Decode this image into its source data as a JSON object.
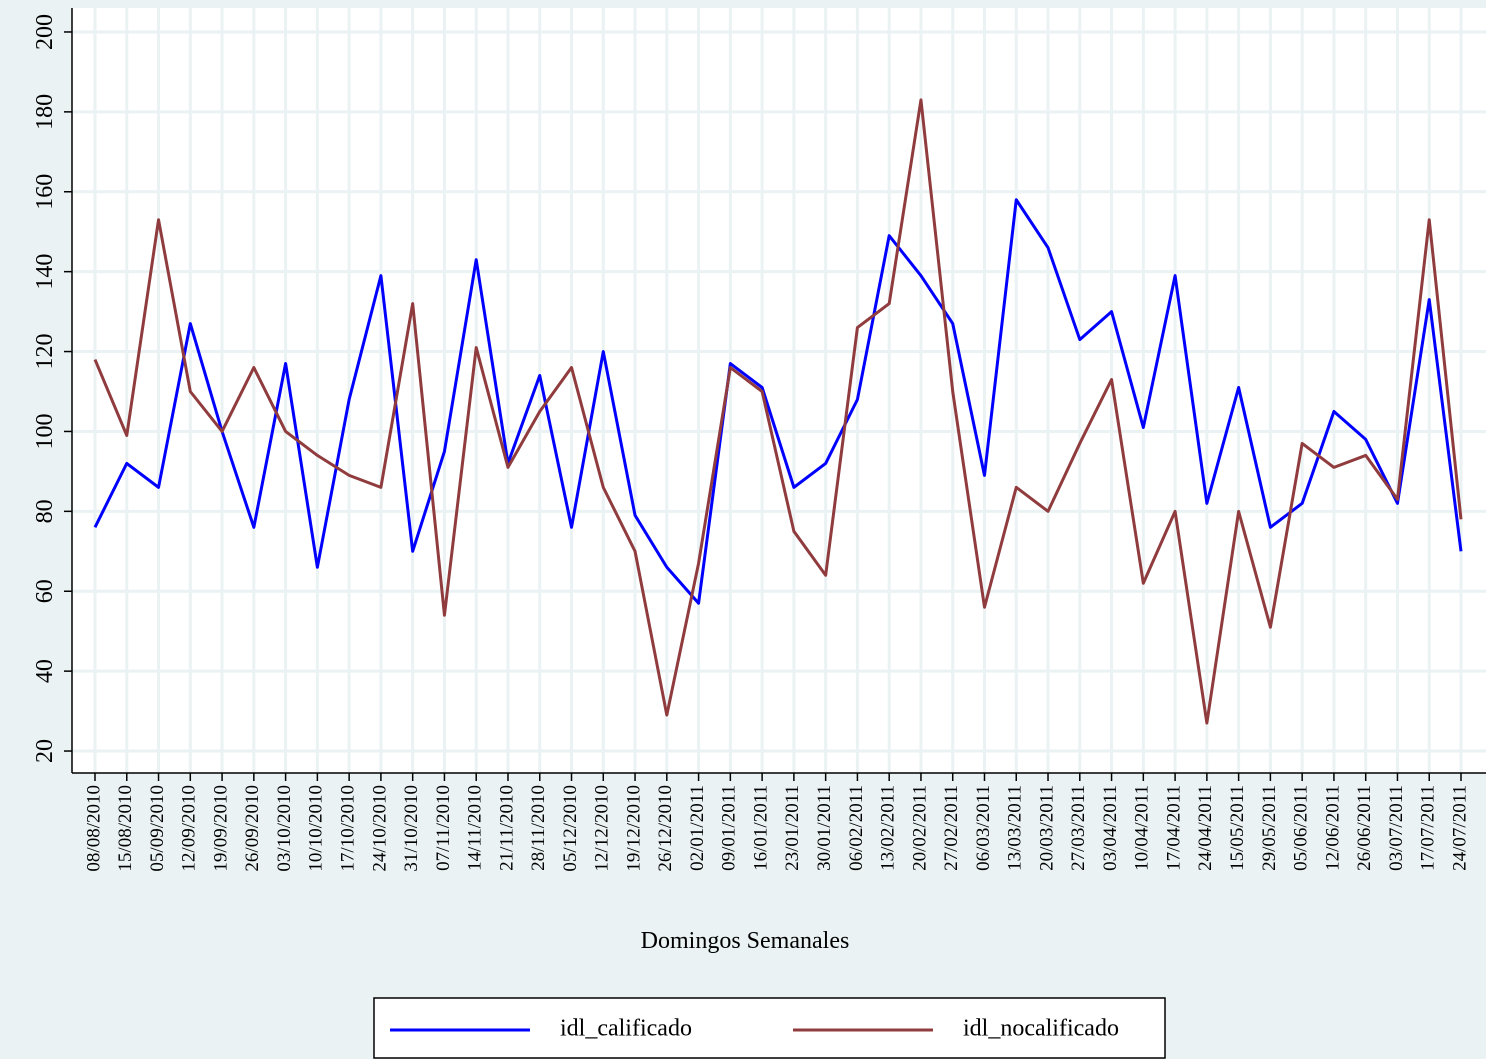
{
  "chart_data": {
    "type": "line",
    "x_label": "Domingos Semanales",
    "categories": [
      "08/08/2010",
      "15/08/2010",
      "05/09/2010",
      "12/09/2010",
      "19/09/2010",
      "26/09/2010",
      "03/10/2010",
      "10/10/2010",
      "17/10/2010",
      "24/10/2010",
      "31/10/2010",
      "07/11/2010",
      "14/11/2010",
      "21/11/2010",
      "28/11/2010",
      "05/12/2010",
      "12/12/2010",
      "19/12/2010",
      "26/12/2010",
      "02/01/2011",
      "09/01/2011",
      "16/01/2011",
      "23/01/2011",
      "30/01/2011",
      "06/02/2011",
      "13/02/2011",
      "20/02/2011",
      "27/02/2011",
      "06/03/2011",
      "13/03/2011",
      "20/03/2011",
      "27/03/2011",
      "03/04/2011",
      "10/04/2011",
      "17/04/2011",
      "24/04/2011",
      "15/05/2011",
      "29/05/2011",
      "05/06/2011",
      "12/06/2011",
      "26/06/2011",
      "03/07/2011",
      "17/07/2011",
      "24/07/2011"
    ],
    "series": [
      {
        "name": "idl_calificado",
        "color": "#0000ff",
        "values": [
          76,
          92,
          86,
          127,
          100,
          76,
          117,
          66,
          108,
          139,
          70,
          95,
          143,
          92,
          114,
          76,
          120,
          79,
          66,
          57,
          117,
          111,
          86,
          92,
          108,
          149,
          139,
          127,
          89,
          158,
          146,
          123,
          130,
          101,
          139,
          82,
          111,
          76,
          82,
          105,
          98,
          82,
          133,
          70
        ]
      },
      {
        "name": "idl_nocalificado",
        "color": "#903c3e",
        "values": [
          118,
          99,
          153,
          110,
          100,
          116,
          100,
          94,
          89,
          86,
          132,
          54,
          121,
          91,
          105,
          116,
          86,
          70,
          29,
          67,
          116,
          110,
          75,
          64,
          126,
          132,
          183,
          110,
          56,
          86,
          80,
          97,
          113,
          62,
          80,
          27,
          80,
          51,
          97,
          91,
          94,
          83,
          153,
          78
        ]
      }
    ],
    "ylim": [
      14.5,
      206
    ],
    "yticks": [
      20,
      40,
      60,
      80,
      100,
      120,
      140,
      160,
      180,
      200
    ],
    "grid": true,
    "legend": "bottom"
  }
}
